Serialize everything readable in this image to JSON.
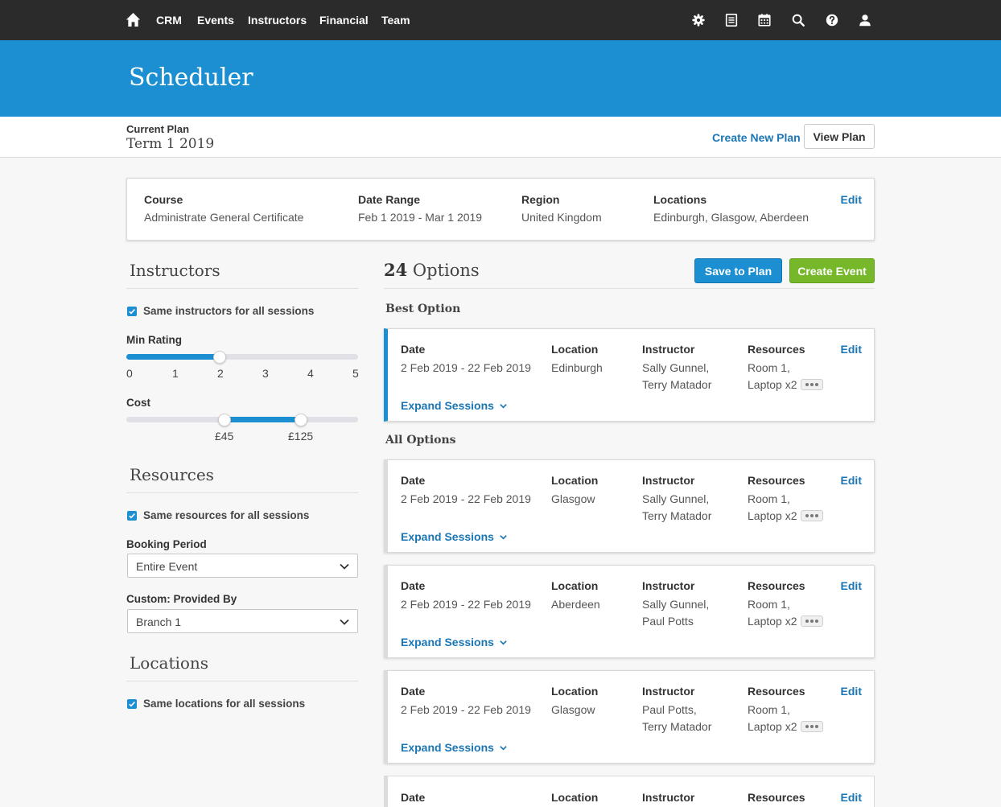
{
  "nav": {
    "items": [
      "CRM",
      "Events",
      "Instructors",
      "Financial",
      "Team"
    ],
    "icons": [
      "gear-icon",
      "document-icon",
      "calendar-icon",
      "search-icon",
      "help-icon",
      "user-icon"
    ]
  },
  "header": {
    "title": "Scheduler"
  },
  "plan": {
    "label": "Current Plan",
    "name": "Term 1 2019",
    "create_label": "Create New Plan",
    "view_label": "View Plan"
  },
  "summary": {
    "course_label": "Course",
    "course_value": "Administrate General Certificate",
    "date_label": "Date Range",
    "date_value": "Feb 1 2019 - Mar 1 2019",
    "region_label": "Region",
    "region_value": "United Kingdom",
    "locations_label": "Locations",
    "locations_value": "Edinburgh, Glasgow, Aberdeen",
    "edit_label": "Edit"
  },
  "sidebar": {
    "instructors": {
      "heading": "Instructors",
      "same_label": "Same instructors for all sessions",
      "min_rating_label": "Min Rating",
      "rating_ticks": [
        "0",
        "1",
        "2",
        "3",
        "4",
        "5"
      ],
      "rating_min": 0,
      "rating_max": 5,
      "rating_value": 2,
      "cost_label": "Cost",
      "cost_low": "£45",
      "cost_high": "£125"
    },
    "resources": {
      "heading": "Resources",
      "same_label": "Same resources for all sessions",
      "booking_label": "Booking Period",
      "booking_value": "Entire Event",
      "provided_label": "Custom: Provided By",
      "provided_value": "Branch 1"
    },
    "locations": {
      "heading": "Locations",
      "same_label": "Same locations for all sessions"
    }
  },
  "main": {
    "options_count": "24",
    "options_word": "Options",
    "save_label": "Save to Plan",
    "create_label": "Create Event",
    "best_label": "Best Option",
    "all_label": "All Options",
    "col_labels": {
      "date": "Date",
      "location": "Location",
      "instructor": "Instructor",
      "resources": "Resources"
    },
    "edit_label": "Edit",
    "expand_label": "Expand Sessions",
    "options": [
      {
        "date": "2 Feb 2019 - 22 Feb 2019",
        "location": "Edinburgh",
        "instructor_1": "Sally Gunnel,",
        "instructor_2": "Terry Matador",
        "resource_1": "Room 1,",
        "resource_2": "Laptop x2"
      },
      {
        "date": "2 Feb 2019 - 22 Feb 2019",
        "location": "Glasgow",
        "instructor_1": "Sally Gunnel,",
        "instructor_2": "Terry Matador",
        "resource_1": "Room 1,",
        "resource_2": "Laptop x2"
      },
      {
        "date": "2 Feb 2019 - 22 Feb 2019",
        "location": "Aberdeen",
        "instructor_1": "Sally Gunnel,",
        "instructor_2": "Paul Potts",
        "resource_1": "Room 1,",
        "resource_2": "Laptop x2"
      },
      {
        "date": "2 Feb 2019 - 22 Feb 2019",
        "location": "Glasgow",
        "instructor_1": "Paul Potts,",
        "instructor_2": "Terry Matador",
        "resource_1": "Room 1,",
        "resource_2": "Laptop x2"
      }
    ]
  },
  "colors": {
    "nav_bg": "#2b2b2b",
    "brand_blue": "#1b8fd2",
    "link_blue": "#1a76b5",
    "create_green": "#76b82a"
  }
}
